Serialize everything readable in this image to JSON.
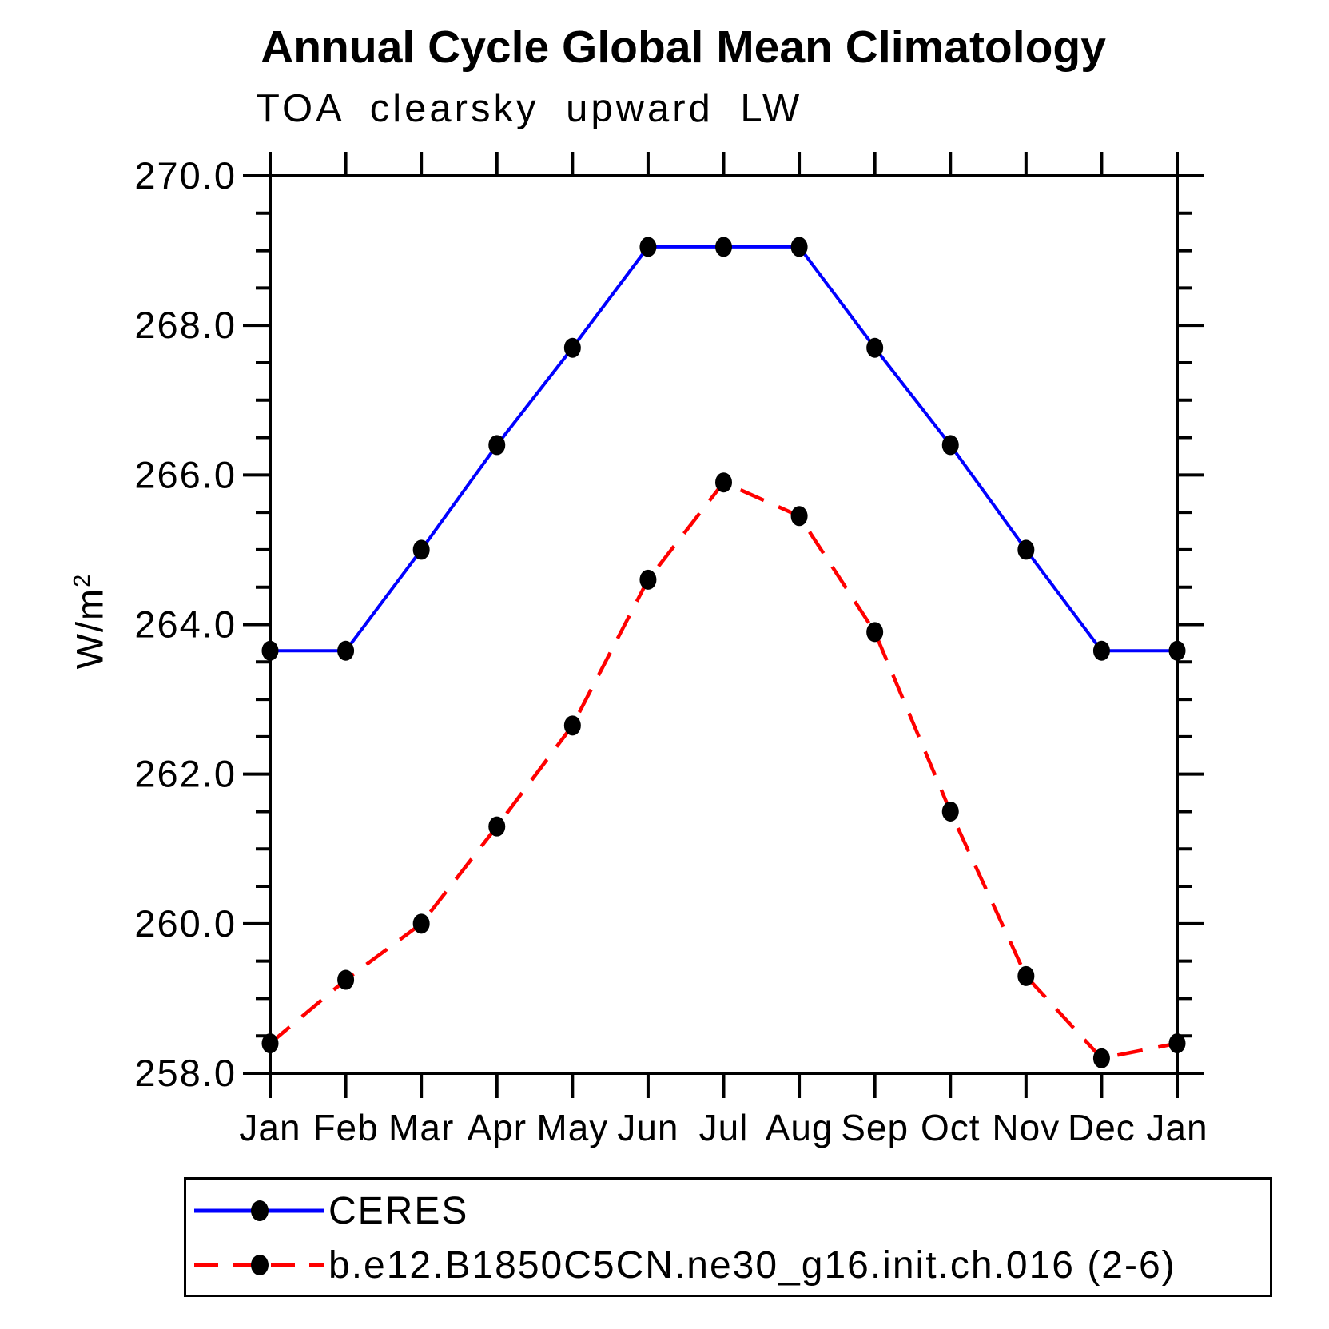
{
  "title": "Annual Cycle Global Mean Climatology",
  "subtitle": "TOA clearsky upward LW",
  "y_axis": {
    "unit_prefix": "W/m",
    "unit_exponent": "2"
  },
  "chart_data": {
    "type": "line",
    "title": "Annual Cycle Global Mean Climatology",
    "subtitle": "TOA clearsky upward LW",
    "ylabel": "W/m²",
    "xlabel": "",
    "categories": [
      "Jan",
      "Feb",
      "Mar",
      "Apr",
      "May",
      "Jun",
      "Jul",
      "Aug",
      "Sep",
      "Oct",
      "Nov",
      "Dec",
      "Jan"
    ],
    "series": [
      {
        "name": "CERES",
        "line_color": "#0000ff",
        "line_style": "solid",
        "marker": "filled-circle",
        "marker_color": "#000000",
        "values": [
          263.65,
          263.65,
          265.0,
          266.4,
          267.7,
          269.05,
          269.05,
          269.05,
          267.7,
          266.4,
          265.0,
          263.65,
          263.65
        ]
      },
      {
        "name": "b.e12.B1850C5CN.ne30_g16.init.ch.016 (2-6)",
        "line_color": "#ff0000",
        "line_style": "dashed",
        "marker": "filled-circle",
        "marker_color": "#000000",
        "values": [
          258.4,
          259.25,
          260.0,
          261.3,
          262.65,
          264.6,
          265.9,
          265.45,
          263.9,
          261.5,
          259.3,
          258.2,
          258.4
        ]
      }
    ],
    "ylim": [
      258.0,
      270.0
    ],
    "ytick_labels": [
      "258.0",
      "260.0",
      "262.0",
      "264.0",
      "266.0",
      "268.0",
      "270.0"
    ],
    "ytick_minor_step": 0.5,
    "grid": false,
    "legend_position": "bottom-left-box",
    "frame": "box-with-outward-ticks"
  }
}
